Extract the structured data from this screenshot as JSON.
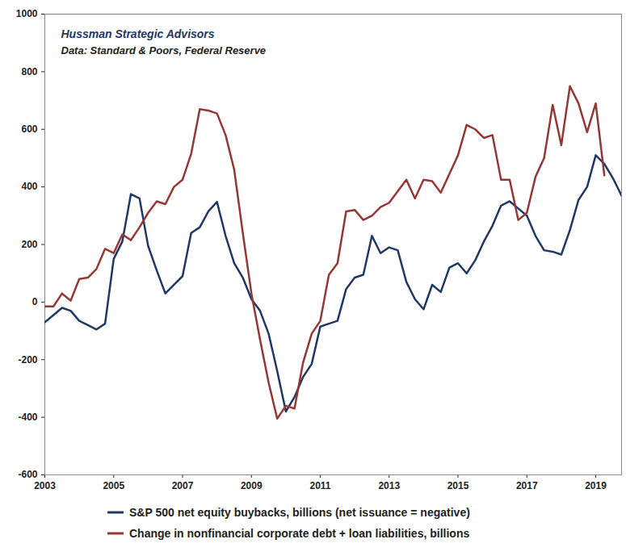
{
  "chart_data": {
    "type": "line",
    "title": "Hussman Strategic Advisors",
    "subtitle": "Data: Standard & Poors, Federal Reserve",
    "x": [
      2003,
      2003.25,
      2003.5,
      2003.75,
      2004,
      2004.25,
      2004.5,
      2004.75,
      2005,
      2005.25,
      2005.5,
      2005.75,
      2006,
      2006.25,
      2006.5,
      2006.75,
      2007,
      2007.25,
      2007.5,
      2007.75,
      2008,
      2008.25,
      2008.5,
      2008.75,
      2009,
      2009.25,
      2009.5,
      2009.75,
      2010,
      2010.25,
      2010.5,
      2010.75,
      2011,
      2011.25,
      2011.5,
      2011.75,
      2012,
      2012.25,
      2012.5,
      2012.75,
      2013,
      2013.25,
      2013.5,
      2013.75,
      2014,
      2014.25,
      2014.5,
      2014.75,
      2015,
      2015.25,
      2015.5,
      2015.75,
      2016,
      2016.25,
      2016.5,
      2016.75,
      2017,
      2017.25,
      2017.5,
      2017.75,
      2018,
      2018.25,
      2018.5,
      2018.75,
      2019,
      2019.25,
      2019.5,
      2019.75
    ],
    "series": [
      {
        "name": "S&P 500 net equity buybacks, billions (net issuance = negative)",
        "color": "#1f3864",
        "values": [
          -70,
          -45,
          -20,
          -30,
          -65,
          -80,
          -95,
          -75,
          150,
          210,
          375,
          360,
          195,
          110,
          30,
          60,
          90,
          240,
          260,
          315,
          348,
          230,
          135,
          85,
          10,
          -30,
          -110,
          -240,
          -380,
          -330,
          -260,
          -215,
          -85,
          -75,
          -65,
          45,
          85,
          95,
          230,
          170,
          190,
          180,
          70,
          10,
          -25,
          60,
          35,
          120,
          135,
          100,
          145,
          210,
          265,
          335,
          350,
          325,
          300,
          230,
          180,
          175,
          165,
          250,
          355,
          400,
          510,
          480,
          430,
          370
        ]
      },
      {
        "name": "Change in nonfinancial corporate debt + loan liabilities, billions",
        "color": "#953735",
        "values": [
          -15,
          -15,
          30,
          5,
          80,
          85,
          115,
          185,
          170,
          235,
          215,
          260,
          310,
          350,
          340,
          400,
          425,
          515,
          670,
          665,
          655,
          580,
          460,
          240,
          30,
          -130,
          -280,
          -405,
          -360,
          -370,
          -210,
          -110,
          -65,
          95,
          135,
          315,
          320,
          285,
          300,
          330,
          345,
          385,
          425,
          360,
          425,
          420,
          380,
          445,
          510,
          615,
          600,
          570,
          580,
          425,
          425,
          285,
          310,
          435,
          500,
          685,
          545,
          750,
          690,
          590,
          690,
          440,
          null,
          null
        ]
      }
    ],
    "xlim": [
      2003,
      2019.75
    ],
    "ylim": [
      -600,
      1000
    ],
    "xticks": [
      2003,
      2005,
      2007,
      2009,
      2011,
      2013,
      2015,
      2017,
      2019
    ],
    "yticks": [
      -600,
      -400,
      -200,
      0,
      200,
      400,
      600,
      800,
      1000
    ],
    "grid": false,
    "legend": "bottom"
  }
}
